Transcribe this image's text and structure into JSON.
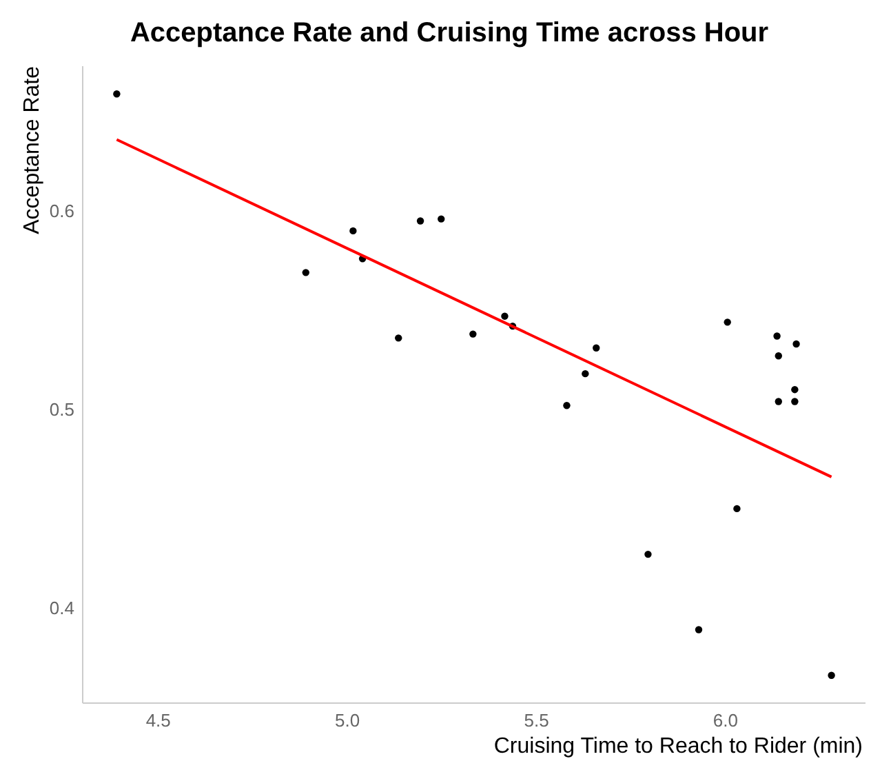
{
  "chart_data": {
    "type": "scatter",
    "title": "Acceptance Rate and Cruising Time across Hour",
    "xlabel": "Cruising Time to Reach to Rider (min)",
    "ylabel": "Acceptance Rate",
    "xlim": [
      4.3,
      6.37
    ],
    "ylim": [
      0.352,
      0.673
    ],
    "xticks": [
      {
        "value": 4.5,
        "label": "4.5"
      },
      {
        "value": 5,
        "label": "5.0"
      },
      {
        "value": 5.5,
        "label": "5.5"
      },
      {
        "value": 6,
        "label": "6.0"
      }
    ],
    "yticks": [
      0.4,
      0.5,
      0.6
    ],
    "grid": false,
    "series": [
      {
        "color": "#000000",
        "marker": "circle",
        "x": [
          4.39,
          4.89,
          5.015,
          5.04,
          5.135,
          5.193,
          5.248,
          5.332,
          5.416,
          5.437,
          5.58,
          5.629,
          5.658,
          6.005,
          6.136,
          6.14,
          6.187,
          6.183,
          6.14,
          6.183,
          6.03,
          5.795,
          5.929,
          6.28
        ],
        "values": [
          0.659,
          0.569,
          0.59,
          0.576,
          0.536,
          0.595,
          0.596,
          0.538,
          0.547,
          0.542,
          0.502,
          0.518,
          0.531,
          0.544,
          0.537,
          0.527,
          0.533,
          0.51,
          0.504,
          0.504,
          0.45,
          0.427,
          0.389,
          0.366
        ]
      },
      {
        "type": "line",
        "color": "#ff0000",
        "x": [
          4.39,
          6.28
        ],
        "values": [
          0.636,
          0.466
        ],
        "marker": "none"
      }
    ]
  }
}
